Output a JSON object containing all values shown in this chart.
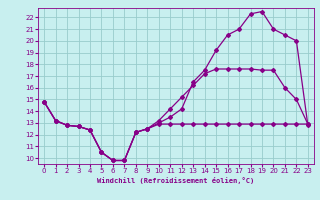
{
  "xlabel": "Windchill (Refroidissement éolien,°C)",
  "bg_color": "#c8efef",
  "line_color": "#880088",
  "grid_color": "#99cccc",
  "axis_color": "#880088",
  "xlim": [
    -0.5,
    23.5
  ],
  "ylim": [
    9.5,
    22.8
  ],
  "xticks": [
    0,
    1,
    2,
    3,
    4,
    5,
    6,
    7,
    8,
    9,
    10,
    11,
    12,
    13,
    14,
    15,
    16,
    17,
    18,
    19,
    20,
    21,
    22,
    23
  ],
  "yticks": [
    10,
    11,
    12,
    13,
    14,
    15,
    16,
    17,
    18,
    19,
    20,
    21,
    22
  ],
  "line1_x": [
    0,
    1,
    2,
    3,
    4,
    5,
    6,
    7,
    8,
    9,
    10,
    11,
    12,
    13,
    14,
    15,
    16,
    17,
    18,
    19,
    20,
    21,
    22,
    23
  ],
  "line1_y": [
    14.8,
    13.2,
    12.8,
    12.7,
    12.4,
    10.5,
    9.8,
    9.8,
    12.2,
    12.5,
    13.0,
    13.5,
    14.2,
    16.5,
    17.5,
    19.2,
    20.5,
    21.0,
    22.3,
    22.5,
    21.0,
    20.5,
    20.0,
    12.8
  ],
  "line2_x": [
    0,
    1,
    2,
    3,
    4,
    5,
    6,
    7,
    8,
    9,
    10,
    11,
    12,
    13,
    14,
    15,
    16,
    17,
    18,
    19,
    20,
    21,
    22,
    23
  ],
  "line2_y": [
    14.8,
    13.2,
    12.8,
    12.7,
    12.4,
    10.5,
    9.8,
    9.8,
    12.2,
    12.5,
    12.9,
    12.9,
    12.9,
    12.9,
    12.9,
    12.9,
    12.9,
    12.9,
    12.9,
    12.9,
    12.9,
    12.9,
    12.9,
    12.9
  ],
  "line3_x": [
    0,
    1,
    2,
    3,
    4,
    5,
    6,
    7,
    8,
    9,
    10,
    11,
    12,
    13,
    14,
    15,
    16,
    17,
    18,
    19,
    20,
    21,
    22,
    23
  ],
  "line3_y": [
    14.8,
    13.2,
    12.8,
    12.7,
    12.4,
    10.5,
    9.8,
    9.8,
    12.2,
    12.5,
    13.2,
    14.2,
    15.2,
    16.2,
    17.2,
    17.6,
    17.6,
    17.6,
    17.6,
    17.5,
    17.5,
    16.0,
    15.0,
    12.9
  ],
  "tick_labelsize": 5,
  "xlabel_fontsize": 5,
  "marker": "D",
  "markersize": 2.0,
  "linewidth": 0.9
}
